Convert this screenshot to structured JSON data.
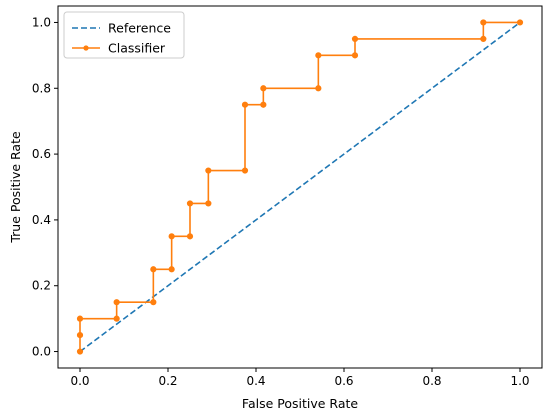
{
  "chart_data": {
    "type": "line",
    "xlabel": "False Positive Rate",
    "ylabel": "True Positive Rate",
    "xlim": [
      -0.05,
      1.05
    ],
    "ylim": [
      -0.05,
      1.05
    ],
    "x_ticks": [
      "0.0",
      "0.2",
      "0.4",
      "0.6",
      "0.8",
      "1.0"
    ],
    "y_ticks": [
      "0.0",
      "0.2",
      "0.4",
      "0.6",
      "0.8",
      "1.0"
    ],
    "grid": false,
    "legend_position": "upper-left",
    "series": [
      {
        "name": "Reference",
        "style": "dashed",
        "marker": "none",
        "color": "#1f77b4",
        "x": [
          0.0,
          1.0
        ],
        "y": [
          0.0,
          1.0
        ]
      },
      {
        "name": "Classifier",
        "style": "solid",
        "marker": "circle",
        "color": "#ff7f0e",
        "x": [
          0.0,
          0.0,
          0.0,
          0.0833,
          0.0833,
          0.1667,
          0.1667,
          0.2083,
          0.2083,
          0.25,
          0.25,
          0.2917,
          0.2917,
          0.375,
          0.375,
          0.4167,
          0.4167,
          0.5417,
          0.5417,
          0.625,
          0.625,
          0.9167,
          0.9167,
          1.0
        ],
        "y": [
          0.0,
          0.05,
          0.1,
          0.1,
          0.15,
          0.15,
          0.25,
          0.25,
          0.35,
          0.35,
          0.45,
          0.45,
          0.55,
          0.55,
          0.75,
          0.75,
          0.8,
          0.8,
          0.9,
          0.9,
          0.95,
          0.95,
          1.0,
          1.0
        ]
      }
    ]
  }
}
